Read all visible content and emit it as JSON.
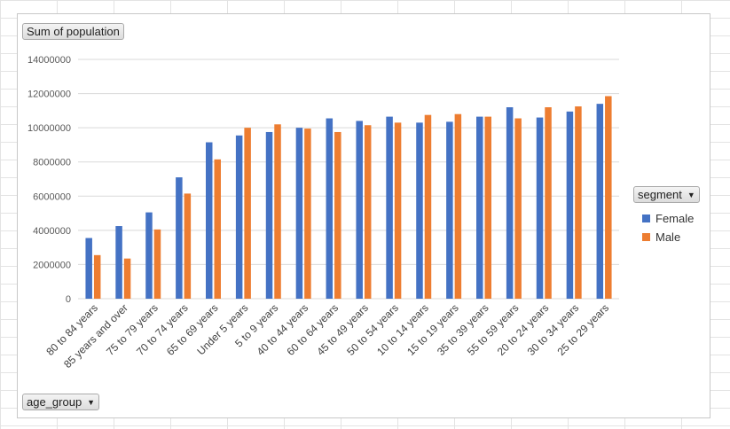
{
  "pivot": {
    "value_field": "Sum of population",
    "row_field": "age_group",
    "legend_field": "segment"
  },
  "colors": {
    "Female": "#4472C4",
    "Male": "#ED7D31"
  },
  "chart_data": {
    "type": "bar",
    "title": "",
    "xlabel": "",
    "ylabel": "",
    "ylim": [
      0,
      14000000
    ],
    "yticks": [
      "0",
      "2000000",
      "4000000",
      "6000000",
      "8000000",
      "10000000",
      "12000000",
      "14000000"
    ],
    "grid": true,
    "legend": "right",
    "categories": [
      "80 to 84 years",
      "85 years and over",
      "75 to 79 years",
      "70 to 74 years",
      "65 to 69 years",
      "Under 5 years",
      "5 to 9 years",
      "40 to 44 years",
      "60 to 64 years",
      "45 to 49 years",
      "50 to 54 years",
      "10 to 14 years",
      "15 to 19 years",
      "35 to 39 years",
      "55 to 59 years",
      "20 to 24 years",
      "30 to 34 years",
      "25 to 29 years"
    ],
    "series": [
      {
        "name": "Female",
        "values": [
          3550000,
          4250000,
          5050000,
          7100000,
          9150000,
          9550000,
          9750000,
          10000000,
          10550000,
          10400000,
          10650000,
          10300000,
          10350000,
          10650000,
          11200000,
          10600000,
          10950000,
          11400000
        ]
      },
      {
        "name": "Male",
        "values": [
          2550000,
          2350000,
          4050000,
          6150000,
          8150000,
          10000000,
          10200000,
          9950000,
          9750000,
          10150000,
          10300000,
          10750000,
          10800000,
          10650000,
          10550000,
          11200000,
          11250000,
          11850000
        ]
      }
    ]
  }
}
